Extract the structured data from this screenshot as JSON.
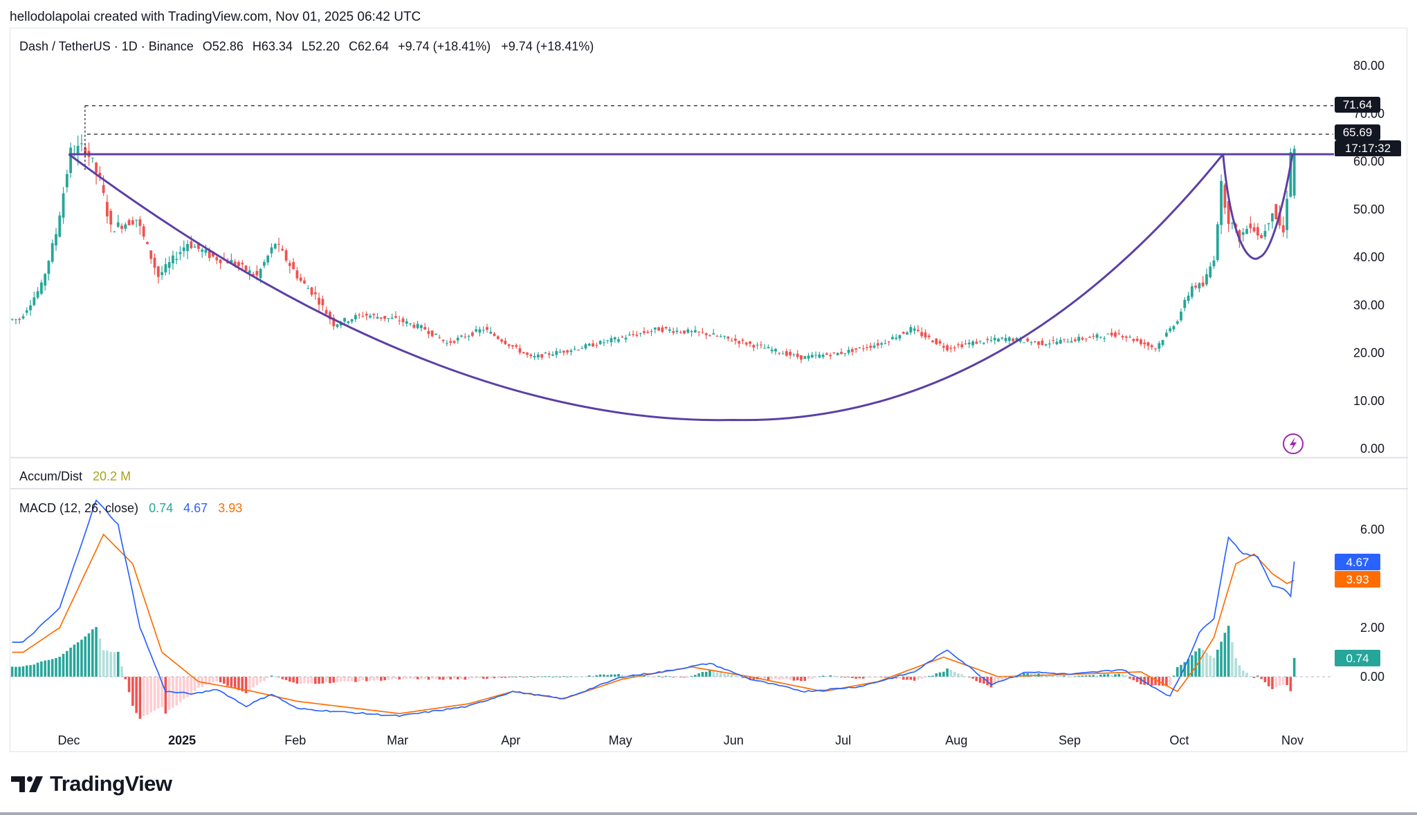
{
  "header": "hellodolapolai created with TradingView.com, Nov 01, 2025 06:42 UTC",
  "legend": {
    "symbol": "Dash / TetherUS · 1D · Binance",
    "open": "O52.86",
    "high": "H63.34",
    "low": "L52.20",
    "close": "C62.64",
    "change1": "+9.74 (+18.41%)",
    "change2": "+9.74 (+18.41%)"
  },
  "accum": {
    "label": "Accum/Dist",
    "value": "20.2 M"
  },
  "macd_legend": {
    "label": "MACD (12, 26, close)",
    "hist": "0.74",
    "macd": "4.67",
    "signal": "3.93"
  },
  "badges": {
    "level_high": "71.64",
    "level_mid": "65.69",
    "countdown": "17:17:32",
    "macd": "4.67",
    "signal": "3.93",
    "hist": "0.74"
  },
  "logo": "TradingView",
  "colors": {
    "up": "#26a69a",
    "down": "#ef5350",
    "pattern": "#5b3fa6",
    "macd_line": "#2962ff",
    "signal_line": "#ff6d00",
    "hist_up_strong": "#26a69a",
    "hist_up_weak": "#b2dfdb",
    "hist_down_strong": "#ef5350",
    "hist_down_weak": "#ffcdd2"
  },
  "chart_data": [
    {
      "type": "candlestick",
      "title": "Dash / TetherUS · 1D · Binance",
      "x_labels": [
        "Dec",
        "2025",
        "Feb",
        "Mar",
        "Apr",
        "May",
        "Jun",
        "Jul",
        "Aug",
        "Sep",
        "Oct",
        "Nov"
      ],
      "y_ticks": [
        0,
        10,
        20,
        30,
        40,
        50,
        60,
        70,
        80
      ],
      "y_tick_labels": [
        "0.00",
        "10.00",
        "20.00",
        "30.00",
        "40.00",
        "50.00",
        "60.00",
        "70.00",
        "80.00"
      ],
      "ylim": [
        0,
        80
      ],
      "grid": false,
      "price_anchors": [
        {
          "date": "2024-11-18",
          "price": 27
        },
        {
          "date": "2024-11-24",
          "price": 34
        },
        {
          "date": "2024-11-28",
          "price": 45
        },
        {
          "date": "2024-12-02",
          "price": 62
        },
        {
          "date": "2024-12-06",
          "price": 63
        },
        {
          "date": "2024-12-10",
          "price": 56
        },
        {
          "date": "2024-12-13",
          "price": 46
        },
        {
          "date": "2024-12-20",
          "price": 48
        },
        {
          "date": "2024-12-26",
          "price": 36
        },
        {
          "date": "2025-01-03",
          "price": 43
        },
        {
          "date": "2025-01-10",
          "price": 40
        },
        {
          "date": "2025-01-15",
          "price": 39
        },
        {
          "date": "2025-01-22",
          "price": 36
        },
        {
          "date": "2025-01-27",
          "price": 43
        },
        {
          "date": "2025-02-03",
          "price": 35
        },
        {
          "date": "2025-02-07",
          "price": 32
        },
        {
          "date": "2025-02-12",
          "price": 26
        },
        {
          "date": "2025-02-20",
          "price": 28
        },
        {
          "date": "2025-03-01",
          "price": 27
        },
        {
          "date": "2025-03-09",
          "price": 25
        },
        {
          "date": "2025-03-15",
          "price": 22
        },
        {
          "date": "2025-03-25",
          "price": 25
        },
        {
          "date": "2025-04-07",
          "price": 19
        },
        {
          "date": "2025-04-20",
          "price": 21
        },
        {
          "date": "2025-05-01",
          "price": 23
        },
        {
          "date": "2025-05-12",
          "price": 25
        },
        {
          "date": "2025-05-25",
          "price": 24
        },
        {
          "date": "2025-06-05",
          "price": 22
        },
        {
          "date": "2025-06-20",
          "price": 19
        },
        {
          "date": "2025-07-01",
          "price": 20
        },
        {
          "date": "2025-07-12",
          "price": 22
        },
        {
          "date": "2025-07-20",
          "price": 25
        },
        {
          "date": "2025-07-30",
          "price": 21
        },
        {
          "date": "2025-08-05",
          "price": 22
        },
        {
          "date": "2025-08-15",
          "price": 23
        },
        {
          "date": "2025-08-25",
          "price": 22
        },
        {
          "date": "2025-09-05",
          "price": 23
        },
        {
          "date": "2025-09-15",
          "price": 24
        },
        {
          "date": "2025-09-25",
          "price": 21
        },
        {
          "date": "2025-10-01",
          "price": 27
        },
        {
          "date": "2025-10-05",
          "price": 34
        },
        {
          "date": "2025-10-08",
          "price": 34
        },
        {
          "date": "2025-10-11",
          "price": 40
        },
        {
          "date": "2025-10-13",
          "price": 55
        },
        {
          "date": "2025-10-15",
          "price": 48
        },
        {
          "date": "2025-10-18",
          "price": 44
        },
        {
          "date": "2025-10-21",
          "price": 47
        },
        {
          "date": "2025-10-24",
          "price": 44
        },
        {
          "date": "2025-10-27",
          "price": 50
        },
        {
          "date": "2025-10-30",
          "price": 45
        },
        {
          "date": "2025-10-31",
          "price": 52.86
        },
        {
          "date": "2025-11-01",
          "price": 62.64
        }
      ],
      "last_candle": {
        "date": "2025-11-01",
        "open": 52.86,
        "high": 63.34,
        "low": 52.2,
        "close": 62.64
      },
      "horizontal_levels": [
        71.64,
        65.69
      ],
      "neckline": {
        "price": 61.5,
        "from": "2024-12-01",
        "to": "2025-11-02"
      },
      "cup_bottom": {
        "date": "2025-06-01",
        "price": 6
      },
      "handle_bottom": {
        "date": "2025-10-23",
        "price": 40
      }
    },
    {
      "type": "macd",
      "title": "MACD (12, 26, close)",
      "y_ticks": [
        0,
        2,
        4,
        6
      ],
      "y_tick_labels": [
        "0.00",
        "2.00",
        "",
        "6.00"
      ],
      "ylim": [
        -2,
        7.5
      ],
      "values": {
        "histogram": 0.74,
        "macd": 4.67,
        "signal": 3.93
      },
      "series": [
        {
          "name": "MACD",
          "anchors": [
            {
              "date": "2024-11-18",
              "value": 1.4
            },
            {
              "date": "2024-11-28",
              "value": 2.8
            },
            {
              "date": "2024-12-08",
              "value": 7.2
            },
            {
              "date": "2024-12-14",
              "value": 6.2
            },
            {
              "date": "2024-12-20",
              "value": 2.0
            },
            {
              "date": "2024-12-27",
              "value": -0.6
            },
            {
              "date": "2025-01-04",
              "value": -0.7
            },
            {
              "date": "2025-01-10",
              "value": -0.5
            },
            {
              "date": "2025-01-18",
              "value": -1.2
            },
            {
              "date": "2025-01-25",
              "value": -0.7
            },
            {
              "date": "2025-02-01",
              "value": -1.3
            },
            {
              "date": "2025-03-01",
              "value": -1.6
            },
            {
              "date": "2025-03-20",
              "value": -1.2
            },
            {
              "date": "2025-04-01",
              "value": -0.6
            },
            {
              "date": "2025-04-15",
              "value": -0.9
            },
            {
              "date": "2025-05-01",
              "value": 0.0
            },
            {
              "date": "2025-05-12",
              "value": 0.2
            },
            {
              "date": "2025-05-25",
              "value": 0.55
            },
            {
              "date": "2025-06-05",
              "value": -0.1
            },
            {
              "date": "2025-06-20",
              "value": -0.6
            },
            {
              "date": "2025-07-05",
              "value": -0.4
            },
            {
              "date": "2025-07-20",
              "value": 0.2
            },
            {
              "date": "2025-07-29",
              "value": 1.1
            },
            {
              "date": "2025-08-10",
              "value": -0.3
            },
            {
              "date": "2025-08-20",
              "value": 0.2
            },
            {
              "date": "2025-09-01",
              "value": 0.1
            },
            {
              "date": "2025-09-15",
              "value": 0.3
            },
            {
              "date": "2025-09-28",
              "value": -0.8
            },
            {
              "date": "2025-10-02",
              "value": 0.4
            },
            {
              "date": "2025-10-06",
              "value": 1.8
            },
            {
              "date": "2025-10-10",
              "value": 2.4
            },
            {
              "date": "2025-10-14",
              "value": 5.7
            },
            {
              "date": "2025-10-18",
              "value": 5.0
            },
            {
              "date": "2025-10-22",
              "value": 4.9
            },
            {
              "date": "2025-10-26",
              "value": 3.7
            },
            {
              "date": "2025-10-29",
              "value": 3.6
            },
            {
              "date": "2025-10-31",
              "value": 3.3
            },
            {
              "date": "2025-11-01",
              "value": 4.67
            }
          ]
        },
        {
          "name": "Signal",
          "anchors": [
            {
              "date": "2024-11-18",
              "value": 1.0
            },
            {
              "date": "2024-11-28",
              "value": 2.0
            },
            {
              "date": "2024-12-10",
              "value": 5.8
            },
            {
              "date": "2024-12-18",
              "value": 4.6
            },
            {
              "date": "2024-12-26",
              "value": 1.0
            },
            {
              "date": "2025-01-05",
              "value": -0.2
            },
            {
              "date": "2025-01-20",
              "value": -0.6
            },
            {
              "date": "2025-02-01",
              "value": -1.0
            },
            {
              "date": "2025-03-01",
              "value": -1.5
            },
            {
              "date": "2025-03-20",
              "value": -1.1
            },
            {
              "date": "2025-04-01",
              "value": -0.6
            },
            {
              "date": "2025-04-15",
              "value": -0.9
            },
            {
              "date": "2025-05-01",
              "value": -0.1
            },
            {
              "date": "2025-05-20",
              "value": 0.4
            },
            {
              "date": "2025-06-05",
              "value": 0.0
            },
            {
              "date": "2025-06-25",
              "value": -0.6
            },
            {
              "date": "2025-07-10",
              "value": -0.2
            },
            {
              "date": "2025-07-28",
              "value": 0.8
            },
            {
              "date": "2025-08-12",
              "value": 0.0
            },
            {
              "date": "2025-09-01",
              "value": 0.1
            },
            {
              "date": "2025-09-20",
              "value": 0.2
            },
            {
              "date": "2025-09-30",
              "value": -0.6
            },
            {
              "date": "2025-10-05",
              "value": 0.4
            },
            {
              "date": "2025-10-10",
              "value": 1.6
            },
            {
              "date": "2025-10-16",
              "value": 4.6
            },
            {
              "date": "2025-10-21",
              "value": 5.0
            },
            {
              "date": "2025-10-26",
              "value": 4.2
            },
            {
              "date": "2025-10-30",
              "value": 3.8
            },
            {
              "date": "2025-11-01",
              "value": 3.93
            }
          ]
        }
      ]
    }
  ]
}
